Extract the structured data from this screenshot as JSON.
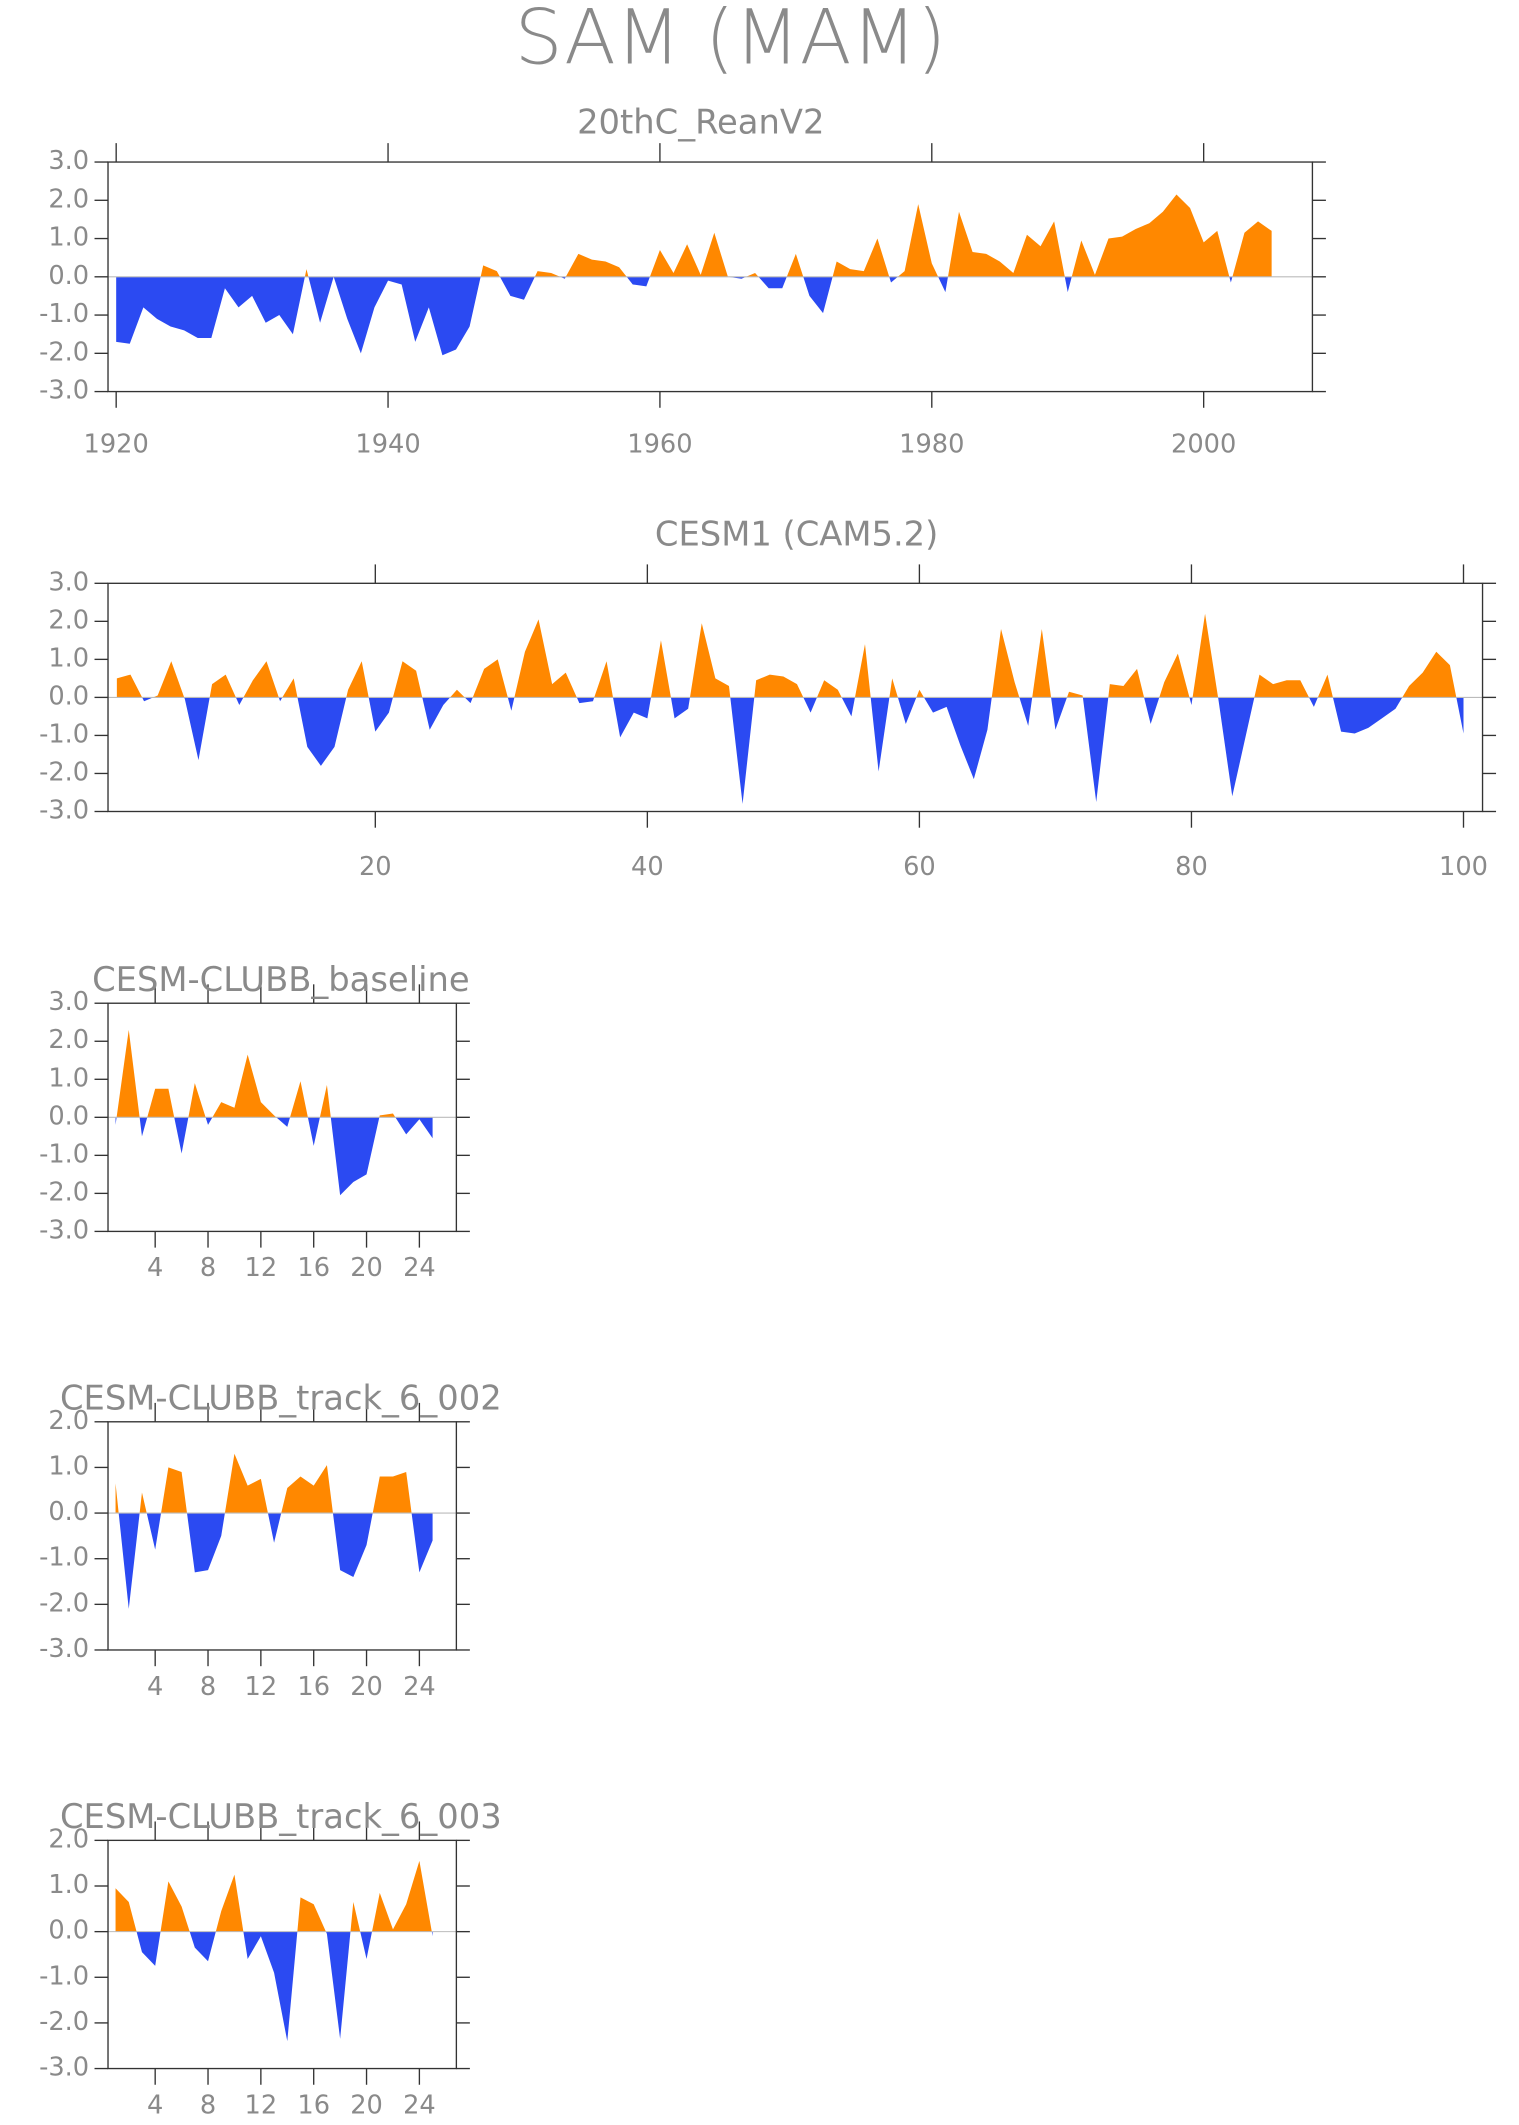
{
  "title": "SAM (MAM)",
  "chart_data": [
    {
      "type": "area",
      "title": "20thC_ReanV2",
      "positive_color": "#ff8800",
      "negative_color": "#2b4af2",
      "x": [
        1920,
        1921,
        1922,
        1923,
        1924,
        1925,
        1926,
        1927,
        1928,
        1929,
        1930,
        1931,
        1932,
        1933,
        1934,
        1935,
        1936,
        1937,
        1938,
        1939,
        1940,
        1941,
        1942,
        1943,
        1944,
        1945,
        1946,
        1947,
        1948,
        1949,
        1950,
        1951,
        1952,
        1953,
        1954,
        1955,
        1956,
        1957,
        1958,
        1959,
        1960,
        1961,
        1962,
        1963,
        1964,
        1965,
        1966,
        1967,
        1968,
        1969,
        1970,
        1971,
        1972,
        1973,
        1974,
        1975,
        1976,
        1977,
        1978,
        1979,
        1980,
        1981,
        1982,
        1983,
        1984,
        1985,
        1986,
        1987,
        1988,
        1989,
        1990,
        1991,
        1992,
        1993,
        1994,
        1995,
        1996,
        1997,
        1998,
        1999,
        2000,
        2001,
        2002,
        2003,
        2004,
        2005
      ],
      "values": [
        -1.7,
        -1.75,
        -0.8,
        -1.1,
        -1.3,
        -1.4,
        -1.6,
        -1.6,
        -0.3,
        -0.8,
        -0.5,
        -1.2,
        -1.0,
        -1.5,
        0.2,
        -1.2,
        0.0,
        -1.1,
        -2.0,
        -0.8,
        -0.1,
        -0.2,
        -1.7,
        -0.8,
        -2.05,
        -1.9,
        -1.3,
        0.3,
        0.15,
        -0.5,
        -0.6,
        0.15,
        0.1,
        -0.05,
        0.6,
        0.45,
        0.4,
        0.25,
        -0.2,
        -0.25,
        0.7,
        0.1,
        0.85,
        0.05,
        1.15,
        0.0,
        -0.05,
        0.1,
        -0.3,
        -0.3,
        0.6,
        -0.5,
        -0.95,
        0.4,
        0.2,
        0.15,
        1.0,
        -0.15,
        0.15,
        1.9,
        0.35,
        -0.4,
        1.7,
        0.65,
        0.6,
        0.4,
        0.1,
        1.1,
        0.8,
        1.45,
        -0.4,
        0.95,
        0.05,
        1.0,
        1.05,
        1.25,
        1.4,
        1.7,
        2.15,
        1.8,
        0.9,
        1.2,
        -0.15,
        1.15,
        1.45,
        1.2
      ],
      "xlim": [
        1919.4,
        2008
      ],
      "xticks": [
        1920,
        1940,
        1960,
        1980,
        2000
      ],
      "ylim": [
        -3,
        3
      ],
      "yticks": [
        {
          "value": 3,
          "label": "3.0"
        },
        {
          "value": 2,
          "label": "2.0"
        },
        {
          "value": 1,
          "label": "1.0"
        },
        {
          "value": 0,
          "label": "0.0"
        },
        {
          "value": -1,
          "label": "-1.0"
        },
        {
          "value": -2,
          "label": "-2.0"
        },
        {
          "value": -3,
          "label": "-3.0"
        }
      ]
    },
    {
      "type": "area",
      "title": "CESM1 (CAM5.2)",
      "positive_color": "#ff8800",
      "negative_color": "#2b4af2",
      "x": [
        1,
        2,
        3,
        4,
        5,
        6,
        7,
        8,
        9,
        10,
        11,
        12,
        13,
        14,
        15,
        16,
        17,
        18,
        19,
        20,
        21,
        22,
        23,
        24,
        25,
        26,
        27,
        28,
        29,
        30,
        31,
        32,
        33,
        34,
        35,
        36,
        37,
        38,
        39,
        40,
        41,
        42,
        43,
        44,
        45,
        46,
        47,
        48,
        49,
        50,
        51,
        52,
        53,
        54,
        55,
        56,
        57,
        58,
        59,
        60,
        61,
        62,
        63,
        64,
        65,
        66,
        67,
        68,
        69,
        70,
        71,
        72,
        73,
        74,
        75,
        76,
        77,
        78,
        79,
        80,
        81,
        82,
        83,
        84,
        85,
        86,
        87,
        88,
        89,
        90,
        91,
        92,
        93,
        94,
        95,
        96,
        97,
        98,
        99,
        100
      ],
      "values": [
        0.5,
        0.6,
        -0.1,
        0.05,
        0.95,
        -0.05,
        -1.65,
        0.35,
        0.6,
        -0.2,
        0.45,
        0.95,
        -0.1,
        0.5,
        -1.3,
        -1.8,
        -1.3,
        0.2,
        0.95,
        -0.9,
        -0.4,
        0.95,
        0.7,
        -0.85,
        -0.2,
        0.2,
        -0.15,
        0.75,
        1.0,
        -0.35,
        1.2,
        2.05,
        0.35,
        0.65,
        -0.15,
        -0.1,
        0.95,
        -1.05,
        -0.4,
        -0.55,
        1.5,
        -0.55,
        -0.3,
        1.95,
        0.5,
        0.3,
        -2.8,
        0.45,
        0.6,
        0.55,
        0.35,
        -0.4,
        0.45,
        0.2,
        -0.5,
        1.4,
        -1.95,
        0.5,
        -0.7,
        0.2,
        -0.4,
        -0.25,
        -1.25,
        -2.15,
        -0.85,
        1.8,
        0.4,
        -0.75,
        1.8,
        -0.85,
        0.15,
        0.05,
        -2.75,
        0.35,
        0.3,
        0.75,
        -0.7,
        0.4,
        1.15,
        -0.2,
        2.2,
        -0.1,
        -2.6,
        -1.0,
        0.6,
        0.35,
        0.45,
        0.45,
        -0.25,
        0.6,
        -0.9,
        -0.95,
        -0.8,
        -0.55,
        -0.3,
        0.3,
        0.65,
        1.2,
        0.85,
        -0.95
      ],
      "xlim": [
        0.35,
        101.4
      ],
      "xticks": [
        20,
        40,
        60,
        80,
        100
      ],
      "ylim": [
        -3,
        3
      ],
      "yticks": [
        {
          "value": 3,
          "label": "3.0"
        },
        {
          "value": 2,
          "label": "2.0"
        },
        {
          "value": 1,
          "label": "1.0"
        },
        {
          "value": 0,
          "label": "0.0"
        },
        {
          "value": -1,
          "label": "-1.0"
        },
        {
          "value": -2,
          "label": "-2.0"
        },
        {
          "value": -3,
          "label": "-3.0"
        }
      ]
    },
    {
      "type": "area",
      "title": "CESM-CLUBB_baseline",
      "positive_color": "#ff8800",
      "negative_color": "#2b4af2",
      "x": [
        1,
        2,
        3,
        4,
        5,
        6,
        7,
        8,
        9,
        10,
        11,
        12,
        13,
        14,
        15,
        16,
        17,
        18,
        19,
        20,
        21,
        22,
        23,
        24,
        25
      ],
      "values": [
        -0.2,
        2.3,
        -0.5,
        0.75,
        0.75,
        -0.95,
        0.9,
        -0.2,
        0.4,
        0.25,
        1.65,
        0.4,
        0.05,
        -0.25,
        0.95,
        -0.75,
        0.85,
        -2.05,
        -1.7,
        -1.5,
        0.05,
        0.1,
        -0.45,
        -0.05,
        -0.55
      ],
      "xlim": [
        0.43,
        26.8
      ],
      "xticks": [
        4,
        8,
        12,
        16,
        20,
        24
      ],
      "ylim": [
        -3,
        3
      ],
      "yticks": [
        {
          "value": 3,
          "label": "3.0"
        },
        {
          "value": 2,
          "label": "2.0"
        },
        {
          "value": 1,
          "label": "1.0"
        },
        {
          "value": 0,
          "label": "0.0"
        },
        {
          "value": -1,
          "label": "-1.0"
        },
        {
          "value": -2,
          "label": "-2.0"
        },
        {
          "value": -3,
          "label": "-3.0"
        }
      ]
    },
    {
      "type": "area",
      "title": "CESM-CLUBB_track_6_002",
      "positive_color": "#ff8800",
      "negative_color": "#2b4af2",
      "x": [
        1,
        2,
        3,
        4,
        5,
        6,
        7,
        8,
        9,
        10,
        11,
        12,
        13,
        14,
        15,
        16,
        17,
        18,
        19,
        20,
        21,
        22,
        23,
        24,
        25
      ],
      "values": [
        0.65,
        -2.1,
        0.45,
        -0.8,
        1.0,
        0.9,
        -1.3,
        -1.25,
        -0.5,
        1.3,
        0.6,
        0.75,
        -0.65,
        0.55,
        0.8,
        0.6,
        1.05,
        -1.25,
        -1.4,
        -0.7,
        0.8,
        0.8,
        0.9,
        -1.3,
        -0.6
      ],
      "xlim": [
        0.43,
        26.8
      ],
      "xticks": [
        4,
        8,
        12,
        16,
        20,
        24
      ],
      "ylim": [
        -3,
        2
      ],
      "yticks": [
        {
          "value": 2,
          "label": "2.0"
        },
        {
          "value": 1,
          "label": "1.0"
        },
        {
          "value": 0,
          "label": "0.0"
        },
        {
          "value": -1,
          "label": "-1.0"
        },
        {
          "value": -2,
          "label": "-2.0"
        },
        {
          "value": -3,
          "label": "-3.0"
        }
      ]
    },
    {
      "type": "area",
      "title": "CESM-CLUBB_track_6_003",
      "positive_color": "#ff8800",
      "negative_color": "#2b4af2",
      "x": [
        1,
        2,
        3,
        4,
        5,
        6,
        7,
        8,
        9,
        10,
        11,
        12,
        13,
        14,
        15,
        16,
        17,
        18,
        19,
        20,
        21,
        22,
        23,
        24,
        25
      ],
      "values": [
        0.95,
        0.65,
        -0.45,
        -0.75,
        1.1,
        0.55,
        -0.35,
        -0.65,
        0.45,
        1.25,
        -0.6,
        -0.1,
        -0.9,
        -2.4,
        0.75,
        0.6,
        -0.05,
        -2.35,
        0.65,
        -0.6,
        0.85,
        0.05,
        0.6,
        1.55,
        -0.1
      ],
      "xlim": [
        0.43,
        26.8
      ],
      "xticks": [
        4,
        8,
        12,
        16,
        20,
        24
      ],
      "ylim": [
        -3,
        2
      ],
      "yticks": [
        {
          "value": 2,
          "label": "2.0"
        },
        {
          "value": 1,
          "label": "1.0"
        },
        {
          "value": 0,
          "label": "0.0"
        },
        {
          "value": -1,
          "label": "-1.0"
        },
        {
          "value": -2,
          "label": "-2.0"
        },
        {
          "value": -3,
          "label": "-3.0"
        }
      ]
    }
  ]
}
